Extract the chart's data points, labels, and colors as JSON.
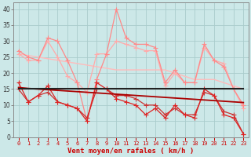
{
  "x": [
    0,
    1,
    2,
    3,
    4,
    5,
    6,
    7,
    8,
    9,
    10,
    11,
    12,
    13,
    14,
    15,
    16,
    17,
    18,
    19,
    20,
    21,
    22,
    23
  ],
  "bg_color": "#cce8e8",
  "grid_color": "#aacccc",
  "xlabel": "Vent moyen/en rafales ( km/h )",
  "xlabel_color": "#cc0000",
  "ylim": [
    0,
    42
  ],
  "yticks": [
    0,
    5,
    10,
    15,
    20,
    25,
    30,
    35,
    40
  ],
  "line_rafales": {
    "y": [
      27,
      25,
      24,
      31,
      30,
      24,
      17,
      5,
      18,
      26,
      40,
      31,
      29,
      29,
      28,
      17,
      21,
      17,
      17,
      29,
      24,
      22,
      15,
      10
    ],
    "color": "#ff8888",
    "lw": 0.9,
    "marker": "+",
    "ms": 4.0
  },
  "line_rafales2": {
    "y": [
      26,
      24,
      24,
      30,
      25,
      19,
      17,
      14,
      26,
      26,
      30,
      29,
      28,
      27,
      27,
      16,
      20,
      17,
      17,
      28,
      24,
      23,
      15,
      9
    ],
    "color": "#ffaaaa",
    "lw": 0.9,
    "marker": "+",
    "ms": 4.0
  },
  "line_trend_light": {
    "y": [
      26,
      25.5,
      25,
      24.5,
      24,
      23.5,
      23,
      22.5,
      22,
      21.5,
      21,
      21,
      21,
      21,
      21,
      21,
      20,
      19,
      18,
      18,
      18,
      17,
      16,
      15
    ],
    "color": "#ffbbbb",
    "lw": 1.0
  },
  "line_moyen": {
    "y": [
      17,
      11,
      13,
      16,
      11,
      10,
      9,
      5,
      17,
      15,
      12,
      11,
      10,
      7,
      9,
      6,
      10,
      7,
      6,
      15,
      13,
      7,
      6,
      1
    ],
    "color": "#dd2222",
    "lw": 0.9,
    "marker": "+",
    "ms": 4.0
  },
  "line_moyen2": {
    "y": [
      15,
      11,
      13,
      14,
      11,
      10,
      9,
      6,
      15,
      15,
      13,
      13,
      12,
      10,
      10,
      7,
      9,
      7,
      7,
      14,
      13,
      8,
      7,
      1
    ],
    "color": "#cc3333",
    "lw": 0.9,
    "marker": "+",
    "ms": 4.0
  },
  "line_trend_dark": {
    "y": [
      15.5,
      15.2,
      15.0,
      14.8,
      14.6,
      14.4,
      14.2,
      14.0,
      13.8,
      13.6,
      13.4,
      13.2,
      13.0,
      12.8,
      12.6,
      12.4,
      12.2,
      12.0,
      11.8,
      11.6,
      11.4,
      11.2,
      11.0,
      10.8
    ],
    "color": "#aa0000",
    "lw": 1.3
  },
  "line_flat": {
    "y": [
      15,
      15,
      15,
      15,
      15,
      15,
      15,
      15,
      15,
      15,
      15,
      15,
      15,
      15,
      15,
      15,
      15,
      15,
      15,
      15,
      15,
      15,
      15,
      15
    ],
    "color": "#222222",
    "lw": 1.5
  }
}
